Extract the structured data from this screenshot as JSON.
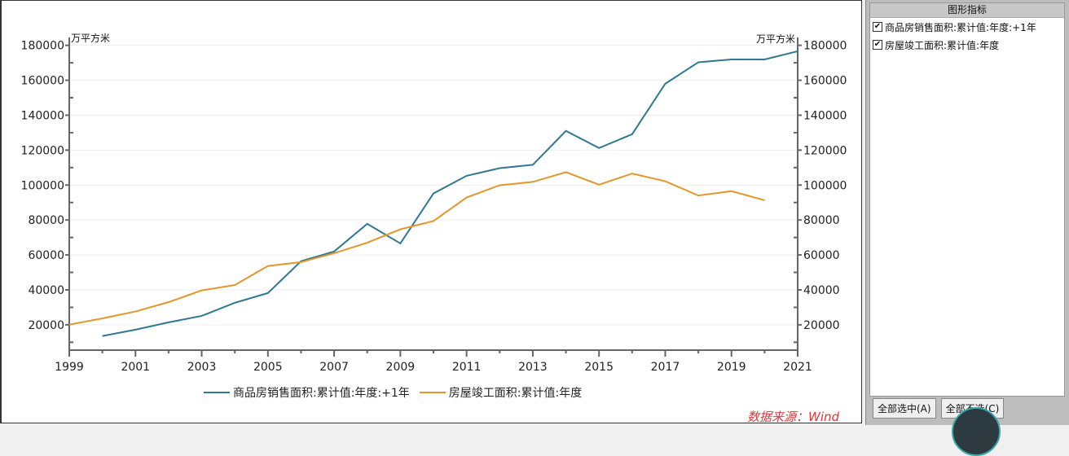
{
  "chart_data": {
    "type": "line",
    "title": "",
    "y_unit_left": "万平方米",
    "y_unit_right": "万平方米",
    "xlim": [
      1999,
      2021
    ],
    "ylim": [
      5500,
      184500
    ],
    "x_ticks": [
      "1999",
      "2001",
      "2003",
      "2005",
      "2007",
      "2009",
      "2011",
      "2013",
      "2015",
      "2017",
      "2019",
      "2021"
    ],
    "y_ticks": [
      "20000",
      "40000",
      "60000",
      "80000",
      "100000",
      "120000",
      "140000",
      "160000",
      "180000"
    ],
    "grid": "horizontal",
    "legend_position": "bottom",
    "series": [
      {
        "name": "商品房销售面积:累计值:年度:+1年",
        "color": "#2e7891",
        "x": [
          2000,
          2001,
          2002,
          2003,
          2004,
          2005,
          2006,
          2007,
          2008,
          2009,
          2010,
          2011,
          2012,
          2013,
          2014,
          2015,
          2016,
          2017,
          2018,
          2019,
          2020,
          2021
        ],
        "values": [
          13600,
          17200,
          21400,
          25100,
          32600,
          38200,
          56400,
          62000,
          77800,
          66600,
          95200,
          105300,
          109700,
          111600,
          131000,
          121200,
          129100,
          158000,
          170300,
          171900,
          171900,
          176600
        ]
      },
      {
        "name": "房屋竣工面积:累计值:年度",
        "color": "#e3962c",
        "x": [
          1999,
          2000,
          2001,
          2002,
          2003,
          2004,
          2005,
          2006,
          2007,
          2008,
          2009,
          2010,
          2011,
          2012,
          2013,
          2014,
          2015,
          2016,
          2017,
          2018,
          2019,
          2020
        ],
        "values": [
          20100,
          23700,
          27600,
          33000,
          39700,
          42800,
          53700,
          55900,
          61000,
          67000,
          74700,
          79400,
          92900,
          99900,
          101800,
          107400,
          100200,
          106600,
          102200,
          94000,
          96500,
          91300
        ]
      }
    ]
  },
  "source": "数据来源：Wind",
  "panel": {
    "title": "图形指标",
    "items": [
      {
        "label": "商品房销售面积:累计值:年度:+1年",
        "checked": true
      },
      {
        "label": "房屋竣工面积:累计值:年度",
        "checked": true
      }
    ],
    "select_all": "全部选中(A)",
    "deselect_all": "全部不选(C)"
  }
}
